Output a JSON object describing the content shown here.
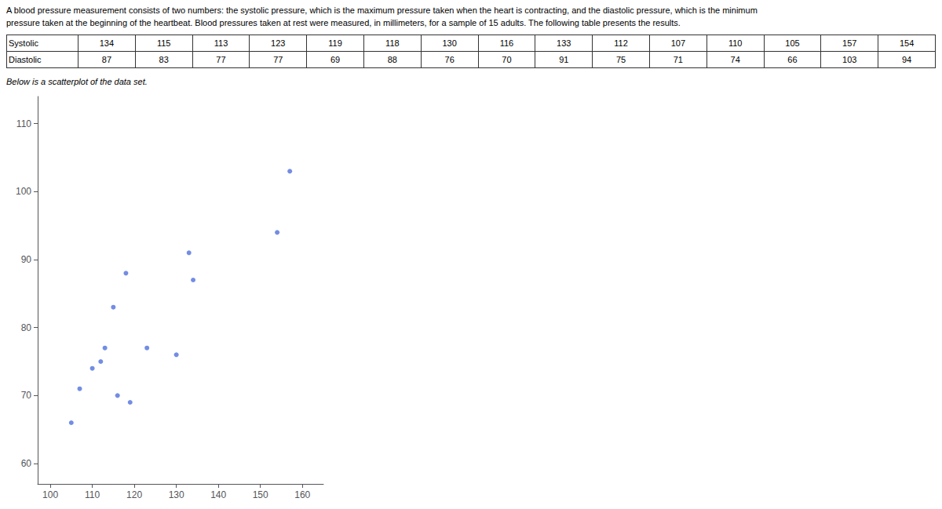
{
  "chart_data": {
    "type": "scatter",
    "annotations": [
      "A blood pressure measurement consists of two numbers: the systolic pressure, which is the maximum pressure taken when the heart is contracting, and the diastolic pressure, which is the minimum",
      "pressure taken at the beginning of the heartbeat. Blood pressures taken at rest were measured, in millimeters, for a sample of 15 adults. The following table presents the results.",
      "Below is a scatterplot of the data set."
    ],
    "x_label": "Systolic",
    "y_label": "Diastolic",
    "x": [
      134,
      115,
      113,
      123,
      119,
      118,
      130,
      116,
      133,
      112,
      107,
      110,
      105,
      157,
      154
    ],
    "values": [
      87,
      83,
      77,
      77,
      69,
      88,
      76,
      70,
      91,
      75,
      71,
      74,
      66,
      103,
      94
    ],
    "xlim": [
      97,
      165
    ],
    "ylim": [
      57,
      114
    ],
    "xticks": [
      100,
      110,
      120,
      130,
      140,
      150,
      160
    ],
    "yticks": [
      60,
      70,
      80,
      90,
      100,
      110
    ],
    "grid": false
  }
}
